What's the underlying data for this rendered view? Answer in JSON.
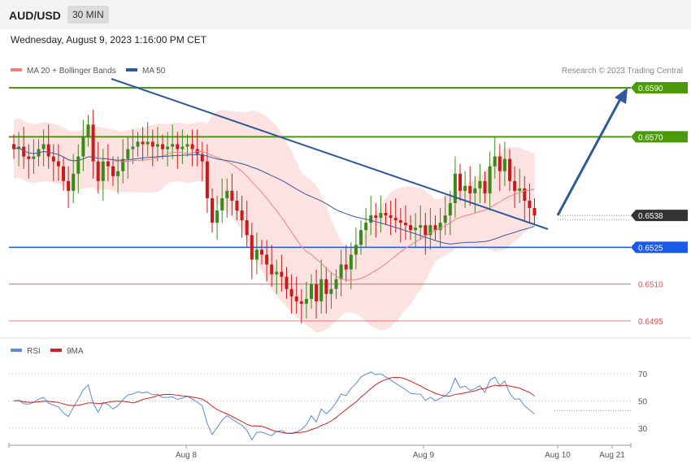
{
  "header": {
    "pair": "AUD/USD",
    "timeframe": "30 MIN"
  },
  "date_text": "Wednesday, August 9, 2023 1:16:00 PM CET",
  "legend": {
    "bands": "MA 20 + Bollinger Bands",
    "ma50": "MA 50",
    "rsi": "RSI",
    "rsi_ma": "9MA"
  },
  "copyright": "Research © 2023 Trading Central",
  "colors": {
    "resistance": "#4a9a0a",
    "support": "#1a5ae8",
    "target": "#e05050",
    "trend": "#2e5a9a",
    "current": "#333333",
    "up": "#3a8a1a",
    "down": "#cc1a1a",
    "band": "#fcd8d8",
    "ma20": "#f08080",
    "ma50": "#3a5a9a",
    "rsi": "#5b8ad8",
    "rsi_ma": "#d42020"
  },
  "chart_data": [
    {
      "type": "candlestick",
      "price_range": [
        0.6484,
        0.6598
      ],
      "x_ticks": [
        "Aug 8",
        "Aug 9",
        "Aug 10",
        "Aug 21"
      ],
      "levels": [
        {
          "value": 0.659,
          "label": "0.6590",
          "kind": "resistance"
        },
        {
          "value": 0.657,
          "label": "0.6570",
          "kind": "resistance"
        },
        {
          "value": 0.6538,
          "label": "0.6538",
          "kind": "current"
        },
        {
          "value": 0.6525,
          "label": "0.6525",
          "kind": "support"
        },
        {
          "value": 0.651,
          "label": "0.6510",
          "kind": "target"
        },
        {
          "value": 0.6495,
          "label": "0.6495",
          "kind": "target"
        }
      ],
      "closes": [
        0.6565,
        0.6566,
        0.6562,
        0.6561,
        0.6562,
        0.6565,
        0.6567,
        0.6562,
        0.656,
        0.6558,
        0.6552,
        0.6548,
        0.6555,
        0.6562,
        0.657,
        0.6575,
        0.656,
        0.6552,
        0.656,
        0.6558,
        0.6554,
        0.6556,
        0.6561,
        0.6565,
        0.6566,
        0.6568,
        0.6567,
        0.6568,
        0.6566,
        0.6567,
        0.6565,
        0.6566,
        0.6567,
        0.6565,
        0.6566,
        0.6567,
        0.6565,
        0.6563,
        0.656,
        0.6545,
        0.6535,
        0.654,
        0.6545,
        0.6548,
        0.6544,
        0.654,
        0.6536,
        0.653,
        0.652,
        0.6524,
        0.6522,
        0.6518,
        0.6514,
        0.6515,
        0.6513,
        0.6508,
        0.6505,
        0.6503,
        0.6502,
        0.6504,
        0.651,
        0.6503,
        0.6512,
        0.6506,
        0.6508,
        0.6512,
        0.6518,
        0.6516,
        0.6522,
        0.6526,
        0.6532,
        0.6535,
        0.6538,
        0.6537,
        0.6539,
        0.6538,
        0.6537,
        0.6536,
        0.6535,
        0.6534,
        0.6532,
        0.6533,
        0.6534,
        0.653,
        0.6534,
        0.6532,
        0.6535,
        0.6538,
        0.6543,
        0.6555,
        0.6548,
        0.655,
        0.6547,
        0.6549,
        0.6552,
        0.6547,
        0.6558,
        0.6562,
        0.6556,
        0.6561,
        0.6552,
        0.6548,
        0.6549,
        0.6544,
        0.6541,
        0.6538
      ],
      "rsi": {
        "levels": [
          70,
          50,
          30
        ],
        "current": 43
      }
    }
  ]
}
